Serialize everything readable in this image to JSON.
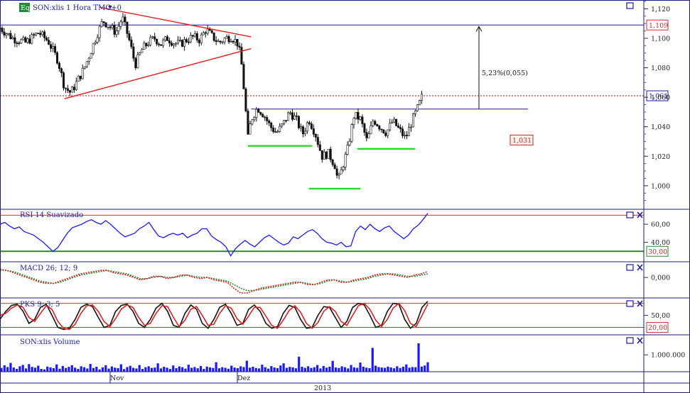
{
  "chart_data": [
    {
      "type": "candlestick",
      "title": "SON:xlis 1 Hora TMG+0",
      "badge": "Eq",
      "ylim": [
        0.985,
        1.125
      ],
      "y_ticks": [
        "1,120",
        "1,100",
        "1,080",
        "1,060",
        "1,040",
        "1,020",
        "1,000"
      ],
      "y_tick_values": [
        1.12,
        1.1,
        1.08,
        1.06,
        1.04,
        1.02,
        1.0
      ],
      "x_labels": [
        "Nov",
        "Dez"
      ],
      "x_footer": "2013",
      "price_markers": [
        {
          "label": "1,109",
          "value": 1.109,
          "color": "#d03030"
        },
        {
          "label": "1,061",
          "value": 1.061,
          "color": "#1a1aa8"
        },
        {
          "label": "1,031",
          "value": 1.031,
          "color": "#b03030"
        }
      ],
      "annotation": "5,23%(0,055)",
      "horizontal_lines": [
        {
          "value": 1.109,
          "color": "#1a1aa8",
          "style": "solid"
        },
        {
          "value": 1.061,
          "color": "#d00000",
          "style": "dotted"
        },
        {
          "value": 1.052,
          "color": "#1a1aa8",
          "style": "solid"
        }
      ],
      "trendlines": [
        {
          "from": [
            0.155,
            1.121
          ],
          "to": [
            0.39,
            1.101
          ],
          "color": "#e02020"
        },
        {
          "from": [
            0.1,
            1.059
          ],
          "to": [
            0.39,
            1.093
          ],
          "color": "#e02020"
        },
        {
          "from": [
            0.385,
            1.027
          ],
          "to": [
            0.485,
            1.027
          ],
          "color": "#22dd22"
        },
        {
          "from": [
            0.48,
            0.998
          ],
          "to": [
            0.56,
            0.998
          ],
          "color": "#22dd22"
        },
        {
          "from": [
            0.555,
            1.025
          ],
          "to": [
            0.645,
            1.025
          ],
          "color": "#22dd22"
        }
      ],
      "close_path": [
        [
          0.0,
          1.107
        ],
        [
          0.02,
          1.1
        ],
        [
          0.04,
          1.097
        ],
        [
          0.06,
          1.104
        ],
        [
          0.075,
          1.098
        ],
        [
          0.09,
          1.085
        ],
        [
          0.1,
          1.067
        ],
        [
          0.11,
          1.063
        ],
        [
          0.12,
          1.071
        ],
        [
          0.13,
          1.079
        ],
        [
          0.14,
          1.09
        ],
        [
          0.15,
          1.102
        ],
        [
          0.16,
          1.112
        ],
        [
          0.17,
          1.108
        ],
        [
          0.18,
          1.104
        ],
        [
          0.19,
          1.114
        ],
        [
          0.2,
          1.1
        ],
        [
          0.21,
          1.082
        ],
        [
          0.22,
          1.092
        ],
        [
          0.23,
          1.097
        ],
        [
          0.24,
          1.1
        ],
        [
          0.25,
          1.096
        ],
        [
          0.26,
          1.1
        ],
        [
          0.27,
          1.097
        ],
        [
          0.28,
          1.096
        ],
        [
          0.29,
          1.099
        ],
        [
          0.3,
          1.101
        ],
        [
          0.31,
          1.099
        ],
        [
          0.32,
          1.106
        ],
        [
          0.33,
          1.101
        ],
        [
          0.34,
          1.097
        ],
        [
          0.35,
          1.1
        ],
        [
          0.36,
          1.101
        ],
        [
          0.37,
          1.096
        ],
        [
          0.375,
          1.083
        ],
        [
          0.38,
          1.06
        ],
        [
          0.385,
          1.032
        ],
        [
          0.39,
          1.045
        ],
        [
          0.4,
          1.053
        ],
        [
          0.41,
          1.048
        ],
        [
          0.42,
          1.04
        ],
        [
          0.43,
          1.036
        ],
        [
          0.44,
          1.042
        ],
        [
          0.45,
          1.05
        ],
        [
          0.46,
          1.045
        ],
        [
          0.47,
          1.035
        ],
        [
          0.48,
          1.045
        ],
        [
          0.49,
          1.035
        ],
        [
          0.5,
          1.02
        ],
        [
          0.51,
          1.022
        ],
        [
          0.52,
          1.014
        ],
        [
          0.525,
          1.003
        ],
        [
          0.53,
          1.01
        ],
        [
          0.54,
          1.025
        ],
        [
          0.55,
          1.048
        ],
        [
          0.56,
          1.045
        ],
        [
          0.57,
          1.03
        ],
        [
          0.58,
          1.045
        ],
        [
          0.59,
          1.04
        ],
        [
          0.6,
          1.036
        ],
        [
          0.61,
          1.044
        ],
        [
          0.62,
          1.038
        ],
        [
          0.63,
          1.032
        ],
        [
          0.64,
          1.044
        ],
        [
          0.65,
          1.054
        ],
        [
          0.655,
          1.06
        ]
      ]
    },
    {
      "type": "line",
      "title": "RSI 14 Suavizado",
      "ylim": [
        20,
        75
      ],
      "y_ticks": [
        "60,00",
        "40,00"
      ],
      "y_tick_values": [
        60,
        40
      ],
      "levels": [
        {
          "label": "30,00",
          "value": 30,
          "color": "#2a8a2a"
        },
        {
          "value": 70,
          "color": "#d03030"
        }
      ],
      "series": [
        {
          "color": "#1a1aff",
          "values": [
            60,
            62,
            58,
            55,
            57,
            52,
            50,
            48,
            44,
            40,
            35,
            30,
            34,
            42,
            50,
            56,
            58,
            60,
            63,
            65,
            62,
            60,
            64,
            60,
            55,
            50,
            46,
            48,
            50,
            55,
            58,
            62,
            54,
            47,
            45,
            48,
            50,
            48,
            50,
            45,
            48,
            50,
            55,
            55,
            47,
            43,
            40,
            35,
            25,
            33,
            38,
            42,
            38,
            35,
            40,
            45,
            48,
            44,
            40,
            37,
            39,
            46,
            44,
            48,
            52,
            54,
            50,
            44,
            40,
            39,
            37,
            40,
            35,
            36,
            52,
            58,
            54,
            60,
            55,
            52,
            56,
            58,
            52,
            48,
            44,
            48,
            55,
            59,
            65,
            72
          ]
        }
      ]
    },
    {
      "type": "line",
      "title": "MACD 26; 12; 9",
      "ylim": [
        -0.016,
        0.012
      ],
      "y_ticks": [
        "0,000"
      ],
      "y_tick_values": [
        0
      ],
      "series": [
        {
          "color": "#2a8a2a",
          "values": [
            0.006,
            0.006,
            0.005,
            0.003,
            0.001,
            -0.001,
            -0.003,
            -0.004,
            -0.005,
            -0.004,
            -0.002,
            0,
            0.002,
            0.003,
            0.004,
            0.005,
            0.006,
            0.005,
            0.004,
            0.003,
            0.001,
            -0.001,
            -0.001,
            0,
            0.001,
            0,
            0,
            0.001,
            0.002,
            0.001,
            0,
            0,
            -0.001,
            -0.002,
            -0.003,
            -0.006,
            -0.009,
            -0.011,
            -0.011,
            -0.01,
            -0.009,
            -0.008,
            -0.007,
            -0.006,
            -0.005,
            -0.004,
            -0.005,
            -0.006,
            -0.005,
            -0.003,
            -0.002,
            -0.003,
            -0.004,
            -0.003,
            -0.002,
            -0.001,
            0.001,
            0.002,
            0.003,
            0.003,
            0.002,
            0.001,
            0.001,
            0.002,
            0.003
          ]
        },
        {
          "color": "#e02020",
          "values": [
            0.007,
            0.006,
            0.004,
            0.002,
            0,
            -0.002,
            -0.004,
            -0.005,
            -0.005,
            -0.003,
            -0.001,
            0.001,
            0.003,
            0.004,
            0.005,
            0.006,
            0.006,
            0.004,
            0.003,
            0.002,
            0,
            -0.002,
            -0.001,
            0.001,
            0.001,
            -0.001,
            0,
            0.002,
            0.002,
            0,
            -0.001,
            0,
            -0.002,
            -0.003,
            -0.004,
            -0.009,
            -0.013,
            -0.013,
            -0.011,
            -0.009,
            -0.008,
            -0.007,
            -0.006,
            -0.005,
            -0.004,
            -0.004,
            -0.006,
            -0.006,
            -0.004,
            -0.002,
            -0.002,
            -0.004,
            -0.004,
            -0.002,
            -0.001,
            0,
            0.002,
            0.003,
            0.003,
            0.002,
            0.001,
            0,
            0.002,
            0.003,
            0.005
          ]
        }
      ]
    },
    {
      "type": "line",
      "title": "PKS 9; 3; 5",
      "ylim": [
        5,
        90
      ],
      "y_ticks": [
        "50,00"
      ],
      "y_tick_values": [
        50
      ],
      "levels": [
        {
          "label": "20,00",
          "value": 20,
          "color": "#d03030"
        },
        {
          "value": 80,
          "color": "#d03030"
        }
      ],
      "series": [
        {
          "color": "#111111",
          "values": [
            40,
            60,
            75,
            78,
            60,
            30,
            40,
            70,
            78,
            50,
            20,
            15,
            18,
            40,
            70,
            78,
            72,
            45,
            20,
            25,
            60,
            75,
            78,
            60,
            30,
            20,
            40,
            68,
            80,
            60,
            25,
            20,
            55,
            76,
            65,
            30,
            18,
            40,
            70,
            78,
            55,
            25,
            30,
            65,
            76,
            60,
            30,
            18,
            22,
            55,
            75,
            70,
            40,
            18,
            20,
            50,
            72,
            70,
            45,
            20,
            35,
            70,
            80,
            76,
            50,
            20,
            25,
            60,
            80,
            78,
            40,
            18,
            30,
            70,
            85
          ]
        },
        {
          "color": "#e02020",
          "values": [
            50,
            55,
            68,
            76,
            70,
            45,
            35,
            55,
            74,
            65,
            35,
            18,
            15,
            28,
            55,
            74,
            76,
            60,
            35,
            22,
            42,
            66,
            76,
            70,
            45,
            25,
            30,
            55,
            74,
            72,
            45,
            22,
            38,
            65,
            72,
            50,
            25,
            28,
            55,
            74,
            68,
            42,
            28,
            48,
            70,
            70,
            48,
            25,
            18,
            38,
            62,
            74,
            58,
            30,
            18,
            32,
            60,
            72,
            60,
            35,
            25,
            50,
            74,
            80,
            65,
            38,
            22,
            40,
            68,
            80,
            62,
            30,
            22,
            50,
            78
          ]
        }
      ]
    },
    {
      "type": "bar",
      "title": "SON:xlis Volume",
      "ylim": [
        0,
        2200000
      ],
      "y_ticks": [
        "1.000.000"
      ],
      "y_tick_values": [
        1000000
      ],
      "color": "#1a1aff",
      "values": [
        150000,
        320000,
        210000,
        480000,
        180000,
        90000,
        260000,
        350000,
        120000,
        400000,
        220000,
        170000,
        300000,
        90000,
        60000,
        240000,
        190000,
        140000,
        380000,
        100000,
        280000,
        150000,
        220000,
        330000,
        170000,
        90000,
        260000,
        200000,
        120000,
        410000,
        150000,
        230000,
        60000,
        190000,
        320000,
        110000,
        250000,
        170000,
        140000,
        390000,
        80000,
        210000,
        290000,
        160000,
        120000,
        340000,
        90000,
        200000,
        260000,
        150000,
        180000,
        450000,
        120000,
        230000,
        170000,
        90000,
        310000,
        140000,
        250000,
        200000,
        110000,
        360000,
        160000,
        210000,
        130000,
        280000,
        90000,
        240000,
        190000,
        150000,
        520000,
        130000,
        200000,
        160000,
        100000,
        300000,
        180000,
        140000,
        260000,
        210000,
        620000,
        170000,
        230000,
        150000,
        120000,
        360000,
        200000,
        110000,
        270000,
        180000,
        140000,
        310000,
        450000,
        160000,
        220000,
        190000,
        130000,
        880000,
        230000,
        160000,
        260000,
        150000,
        200000,
        340000,
        120000,
        280000,
        170000,
        230000,
        610000,
        180000,
        150000,
        260000,
        200000,
        120000,
        340000,
        190000,
        160000,
        500000,
        230000,
        170000,
        140000,
        1450000,
        300000,
        210000,
        180000,
        160000,
        240000,
        190000,
        130000,
        260000,
        150000,
        230000,
        380000,
        170000,
        210000,
        200000,
        1750000,
        240000,
        310000,
        520000
      ]
    }
  ]
}
